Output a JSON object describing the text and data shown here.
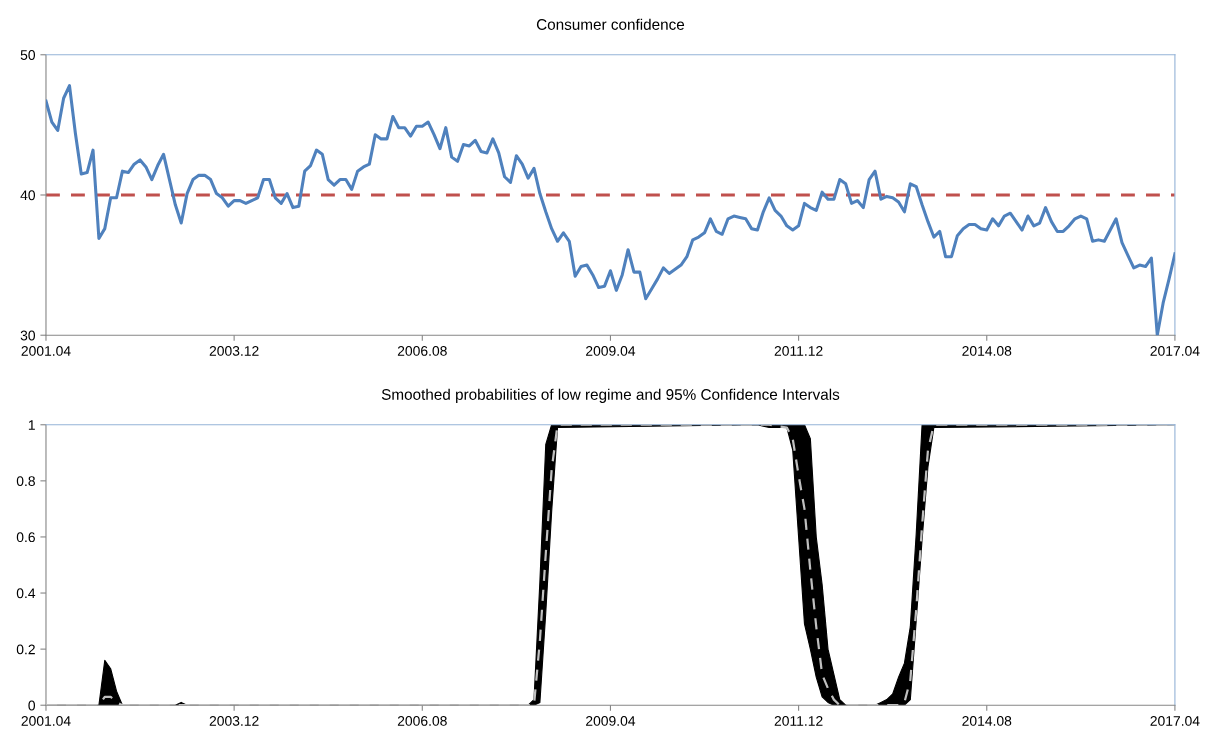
{
  "chart_data": [
    {
      "type": "line",
      "title": "Consumer confidence",
      "x": [
        "2001-04",
        "2001-05",
        "2001-06",
        "2001-07",
        "2001-08",
        "2001-09",
        "2001-10",
        "2001-11",
        "2001-12",
        "2002-01",
        "2002-02",
        "2002-03",
        "2002-04",
        "2002-05",
        "2002-06",
        "2002-07",
        "2002-08",
        "2002-09",
        "2002-10",
        "2002-11",
        "2002-12",
        "2003-01",
        "2003-02",
        "2003-03",
        "2003-04",
        "2003-05",
        "2003-06",
        "2003-07",
        "2003-08",
        "2003-09",
        "2003-10",
        "2003-11",
        "2003-12",
        "2004-01",
        "2004-02",
        "2004-03",
        "2004-04",
        "2004-05",
        "2004-06",
        "2004-07",
        "2004-08",
        "2004-09",
        "2004-10",
        "2004-11",
        "2004-12",
        "2005-01",
        "2005-02",
        "2005-03",
        "2005-04",
        "2005-05",
        "2005-06",
        "2005-07",
        "2005-08",
        "2005-09",
        "2005-10",
        "2005-11",
        "2005-12",
        "2006-01",
        "2006-02",
        "2006-03",
        "2006-04",
        "2006-05",
        "2006-06",
        "2006-07",
        "2006-08",
        "2006-09",
        "2006-10",
        "2006-11",
        "2006-12",
        "2007-01",
        "2007-02",
        "2007-03",
        "2007-04",
        "2007-05",
        "2007-06",
        "2007-07",
        "2007-08",
        "2007-09",
        "2007-10",
        "2007-11",
        "2007-12",
        "2008-01",
        "2008-02",
        "2008-03",
        "2008-04",
        "2008-05",
        "2008-06",
        "2008-07",
        "2008-08",
        "2008-09",
        "2008-10",
        "2008-11",
        "2008-12",
        "2009-01",
        "2009-02",
        "2009-03",
        "2009-04",
        "2009-05",
        "2009-06",
        "2009-07",
        "2009-08",
        "2009-09",
        "2009-10",
        "2009-11",
        "2009-12",
        "2010-01",
        "2010-02",
        "2010-03",
        "2010-04",
        "2010-05",
        "2010-06",
        "2010-07",
        "2010-08",
        "2010-09",
        "2010-10",
        "2010-11",
        "2010-12",
        "2011-01",
        "2011-02",
        "2011-03",
        "2011-04",
        "2011-05",
        "2011-06",
        "2011-07",
        "2011-08",
        "2011-09",
        "2011-10",
        "2011-11",
        "2011-12",
        "2012-01",
        "2012-02",
        "2012-03",
        "2012-04",
        "2012-05",
        "2012-06",
        "2012-07",
        "2012-08",
        "2012-09",
        "2012-10",
        "2012-11",
        "2012-12",
        "2013-01",
        "2013-02",
        "2013-03",
        "2013-04",
        "2013-05",
        "2013-06",
        "2013-07",
        "2013-08",
        "2013-09",
        "2013-10",
        "2013-11",
        "2013-12",
        "2014-01",
        "2014-02",
        "2014-03",
        "2014-04",
        "2014-05",
        "2014-06",
        "2014-07",
        "2014-08",
        "2014-09",
        "2014-10",
        "2014-11",
        "2014-12",
        "2015-01",
        "2015-02",
        "2015-03",
        "2015-04",
        "2015-05",
        "2015-06",
        "2015-07",
        "2015-08",
        "2015-09",
        "2015-10",
        "2015-11",
        "2015-12",
        "2016-01",
        "2016-02",
        "2016-03",
        "2016-04",
        "2016-05",
        "2016-06",
        "2016-07",
        "2016-08",
        "2016-09",
        "2016-10",
        "2016-11",
        "2016-12",
        "2017-01",
        "2017-02",
        "2017-03",
        "2017-04"
      ],
      "series": [
        {
          "color": "#4f81bd",
          "line_style": "solid",
          "values": [
            46.7,
            45.2,
            44.6,
            46.9,
            47.8,
            44.4,
            41.5,
            41.6,
            43.2,
            36.9,
            37.6,
            39.8,
            39.8,
            41.7,
            41.6,
            42.2,
            42.5,
            42.0,
            41.1,
            42.1,
            42.9,
            41.1,
            39.3,
            38.0,
            40.1,
            41.1,
            41.4,
            41.4,
            41.1,
            40.1,
            39.8,
            39.2,
            39.6,
            39.6,
            39.4,
            39.6,
            39.8,
            41.1,
            41.1,
            39.8,
            39.4,
            40.1,
            39.1,
            39.2,
            41.7,
            42.1,
            43.2,
            42.9,
            41.1,
            40.7,
            41.1,
            41.1,
            40.4,
            41.7,
            42.0,
            42.2,
            44.3,
            44.0,
            44.0,
            45.6,
            44.8,
            44.8,
            44.2,
            44.9,
            44.9,
            45.2,
            44.3,
            43.3,
            44.8,
            42.7,
            42.4,
            43.6,
            43.5,
            43.9,
            43.1,
            43.0,
            44.0,
            43.0,
            41.3,
            40.9,
            42.8,
            42.2,
            41.2,
            41.9,
            40.1,
            38.8,
            37.6,
            36.7,
            37.3,
            36.7,
            34.2,
            34.9,
            35.0,
            34.3,
            33.4,
            33.5,
            34.6,
            33.2,
            34.3,
            36.1,
            34.5,
            34.5,
            32.6,
            33.3,
            34.0,
            34.8,
            34.4,
            34.7,
            35.0,
            35.6,
            36.8,
            37.0,
            37.3,
            38.3,
            37.4,
            37.2,
            38.3,
            38.5,
            38.4,
            38.3,
            37.6,
            37.5,
            38.8,
            39.8,
            38.9,
            38.5,
            37.8,
            37.5,
            37.8,
            39.4,
            39.1,
            38.9,
            40.2,
            39.7,
            39.7,
            41.1,
            40.8,
            39.4,
            39.6,
            39.1,
            41.1,
            41.7,
            39.7,
            39.9,
            39.8,
            39.5,
            38.8,
            40.8,
            40.6,
            39.3,
            38.1,
            37.0,
            37.4,
            35.6,
            35.6,
            37.1,
            37.6,
            37.9,
            37.9,
            37.6,
            37.5,
            38.3,
            37.8,
            38.5,
            38.7,
            38.1,
            37.5,
            38.5,
            37.8,
            38.0,
            39.1,
            38.1,
            37.4,
            37.4,
            37.8,
            38.3,
            38.5,
            38.3,
            36.7,
            36.8,
            36.7,
            37.5,
            38.3,
            36.6,
            35.7,
            34.8,
            35.0,
            34.9,
            35.5,
            30.0,
            32.3,
            34.0,
            35.8
          ]
        }
      ],
      "ref_lines": [
        {
          "axis": "y",
          "value": 40,
          "color": "#c0504d",
          "line_style": "dashed"
        }
      ],
      "xlim": [
        "2001-04",
        "2017-04"
      ],
      "xticks": [
        {
          "value": "2001-04",
          "label": "2001.04"
        },
        {
          "value": "2003-12",
          "label": "2003.12"
        },
        {
          "value": "2006-08",
          "label": "2006.08"
        },
        {
          "value": "2009-04",
          "label": "2009.04"
        },
        {
          "value": "2011-12",
          "label": "2011.12"
        },
        {
          "value": "2014-08",
          "label": "2014.08"
        },
        {
          "value": "2017-04",
          "label": "2017.04"
        }
      ],
      "ylim": [
        30,
        50
      ],
      "yticks": [
        30,
        40,
        50
      ],
      "grid": false
    },
    {
      "type": "line",
      "title": "Smoothed probabilities of low regime and 95% Confidence Intervals",
      "x": [
        "2001-04",
        "2002-01",
        "2002-02",
        "2002-03",
        "2002-04",
        "2002-05",
        "2003-02",
        "2003-03",
        "2003-04",
        "2008-02",
        "2008-03",
        "2008-04",
        "2008-05",
        "2008-06",
        "2008-07",
        "2011-05",
        "2011-07",
        "2011-10",
        "2011-11",
        "2011-12",
        "2012-01",
        "2012-02",
        "2012-03",
        "2012-04",
        "2012-05",
        "2012-06",
        "2012-07",
        "2012-08",
        "2013-01",
        "2013-02",
        "2013-03",
        "2013-04",
        "2013-05",
        "2013-06",
        "2013-07",
        "2013-08",
        "2013-09",
        "2013-10",
        "2013-11",
        "2017-04"
      ],
      "series": [
        {
          "color": "#bfbfbf",
          "line_style": "dashed",
          "values": [
            0,
            0,
            0.03,
            0.03,
            0.01,
            0,
            0,
            0,
            0,
            0,
            0,
            0.23,
            0.54,
            0.84,
            1,
            1,
            1,
            0.99,
            0.95,
            0.82,
            0.7,
            0.48,
            0.28,
            0.11,
            0.06,
            0.02,
            0,
            0,
            0,
            0,
            0,
            0,
            0,
            0.01,
            0.09,
            0.34,
            0.64,
            0.91,
            1,
            1
          ],
          "lower": [
            0,
            0,
            0,
            0,
            0,
            0,
            0,
            0,
            0,
            0,
            0,
            0.01,
            0.33,
            0.69,
            0.99,
            1,
            0.99,
            0.99,
            0.91,
            0.6,
            0.29,
            0.2,
            0.1,
            0.03,
            0.01,
            0,
            0,
            0,
            0,
            0,
            0,
            0,
            0,
            0,
            0.02,
            0.3,
            0.59,
            0.85,
            0.99,
            1
          ],
          "upper": [
            0,
            0,
            0.16,
            0.13,
            0.05,
            0,
            0,
            0.01,
            0,
            0,
            0.02,
            0.44,
            0.93,
            1,
            1,
            1,
            1,
            1,
            1,
            1,
            1,
            0.95,
            0.6,
            0.43,
            0.2,
            0.11,
            0.02,
            0,
            0,
            0.01,
            0.02,
            0.04,
            0.1,
            0.15,
            0.28,
            0.61,
            1,
            1,
            1,
            1
          ]
        }
      ],
      "xlim": [
        "2001-04",
        "2017-04"
      ],
      "xticks": [
        {
          "value": "2001-04",
          "label": "2001.04"
        },
        {
          "value": "2003-12",
          "label": "2003.12"
        },
        {
          "value": "2006-08",
          "label": "2006.08"
        },
        {
          "value": "2009-04",
          "label": "2009.04"
        },
        {
          "value": "2011-12",
          "label": "2011.12"
        },
        {
          "value": "2014-08",
          "label": "2014.08"
        },
        {
          "value": "2017-04",
          "label": "2017.04"
        }
      ],
      "ylim": [
        0,
        1
      ],
      "yticks": [
        0,
        0.2,
        0.4,
        0.6,
        0.8,
        1
      ],
      "grid": false
    }
  ]
}
